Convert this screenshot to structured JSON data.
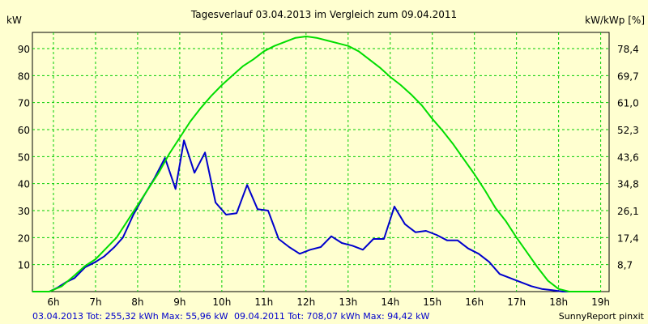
{
  "colors": {
    "background": "#FFFFD0",
    "grid": "#00CC00",
    "series_2013": "#0000CC",
    "series_2011": "#00DD00"
  },
  "chart_data": {
    "type": "line",
    "title": "Tagesverlauf 03.04.2013 im Vergleich zum 09.04.2011",
    "ylabel_left": "kW",
    "ylabel_right": "kW/kWp [%]",
    "xlim": [
      5.5,
      19.2
    ],
    "ylim": [
      0,
      96
    ],
    "grid": true,
    "x_tick_labels": [
      {
        "x": 6,
        "label": "6h"
      },
      {
        "x": 7,
        "label": "7h"
      },
      {
        "x": 8,
        "label": "8h"
      },
      {
        "x": 9,
        "label": "9h"
      },
      {
        "x": 10,
        "label": "10h"
      },
      {
        "x": 11,
        "label": "11h"
      },
      {
        "x": 12,
        "label": "12h"
      },
      {
        "x": 13,
        "label": "13h"
      },
      {
        "x": 14,
        "label": "14h"
      },
      {
        "x": 15,
        "label": "15h"
      },
      {
        "x": 16,
        "label": "16h"
      },
      {
        "x": 17,
        "label": "17h"
      },
      {
        "x": 18,
        "label": "18h"
      },
      {
        "x": 19,
        "label": "19h"
      }
    ],
    "y_ticks_left": [
      10,
      20,
      30,
      40,
      50,
      60,
      70,
      80,
      90
    ],
    "y_ticks_right": [
      "8,7",
      "17,4",
      "26,1",
      "34,8",
      "43,6",
      "52,3",
      "61,0",
      "69,7",
      "78,4"
    ],
    "series": [
      {
        "name": "03.04.2013",
        "x": [
          5.5,
          5.9,
          6.1,
          6.3,
          6.5,
          6.75,
          7.0,
          7.2,
          7.45,
          7.65,
          7.9,
          8.15,
          8.4,
          8.65,
          8.9,
          9.1,
          9.35,
          9.6,
          9.85,
          10.1,
          10.35,
          10.6,
          10.85,
          11.1,
          11.35,
          11.6,
          11.85,
          12.1,
          12.35,
          12.6,
          12.85,
          13.1,
          13.35,
          13.6,
          13.85,
          14.1,
          14.35,
          14.6,
          14.85,
          15.1,
          15.35,
          15.6,
          15.85,
          16.1,
          16.35,
          16.6,
          16.85,
          17.1,
          17.35,
          17.6,
          17.85,
          18.1,
          18.5
        ],
        "values": [
          0,
          0,
          1.5,
          3.5,
          5,
          9,
          11,
          13,
          16.5,
          20,
          28.5,
          35.5,
          42,
          49.5,
          38,
          56,
          44,
          51.5,
          33,
          28.5,
          29,
          39.5,
          30.5,
          30,
          19.5,
          16.5,
          14,
          15.5,
          16.5,
          20.5,
          18,
          17,
          15.5,
          19.5,
          19.5,
          31.5,
          25,
          22,
          22.5,
          21,
          19,
          19,
          16,
          14,
          11,
          6.5,
          5,
          3.5,
          2,
          1,
          0.5,
          0,
          0
        ]
      },
      {
        "name": "09.04.2011",
        "x": [
          5.5,
          5.9,
          6.2,
          6.5,
          6.75,
          7.0,
          7.25,
          7.5,
          7.75,
          8.0,
          8.25,
          8.5,
          8.75,
          9.0,
          9.25,
          9.5,
          9.75,
          10.0,
          10.25,
          10.5,
          10.75,
          11.0,
          11.25,
          11.5,
          11.75,
          12.0,
          12.25,
          12.5,
          12.75,
          13.0,
          13.25,
          13.5,
          13.75,
          14.0,
          14.25,
          14.5,
          14.75,
          15.0,
          15.25,
          15.5,
          15.75,
          16.0,
          16.25,
          16.5,
          16.75,
          17.0,
          17.25,
          17.5,
          17.75,
          18.0,
          18.25,
          18.5,
          18.75,
          19.0
        ],
        "values": [
          0,
          0,
          2,
          6,
          9.5,
          12,
          16,
          20,
          26,
          32,
          38,
          44,
          51,
          57,
          63,
          68,
          72.5,
          76.5,
          80,
          83.5,
          86,
          89,
          91,
          92.5,
          94,
          94.5,
          94,
          93,
          92,
          91,
          89,
          86,
          83,
          79.5,
          76.5,
          73,
          69,
          64,
          59.5,
          54.5,
          49,
          43.5,
          37.5,
          31,
          26,
          20,
          14.5,
          9,
          4,
          1,
          0,
          0,
          0,
          0
        ]
      }
    ]
  },
  "footer": {
    "text_2013": "03.04.2013 Tot: 255,32 kWh Max: 55,96 kW",
    "text_2011": "09.04.2011 Tot: 708,07 kWh Max: 94,42 kW",
    "credit": "SunnyReport pinxit"
  }
}
